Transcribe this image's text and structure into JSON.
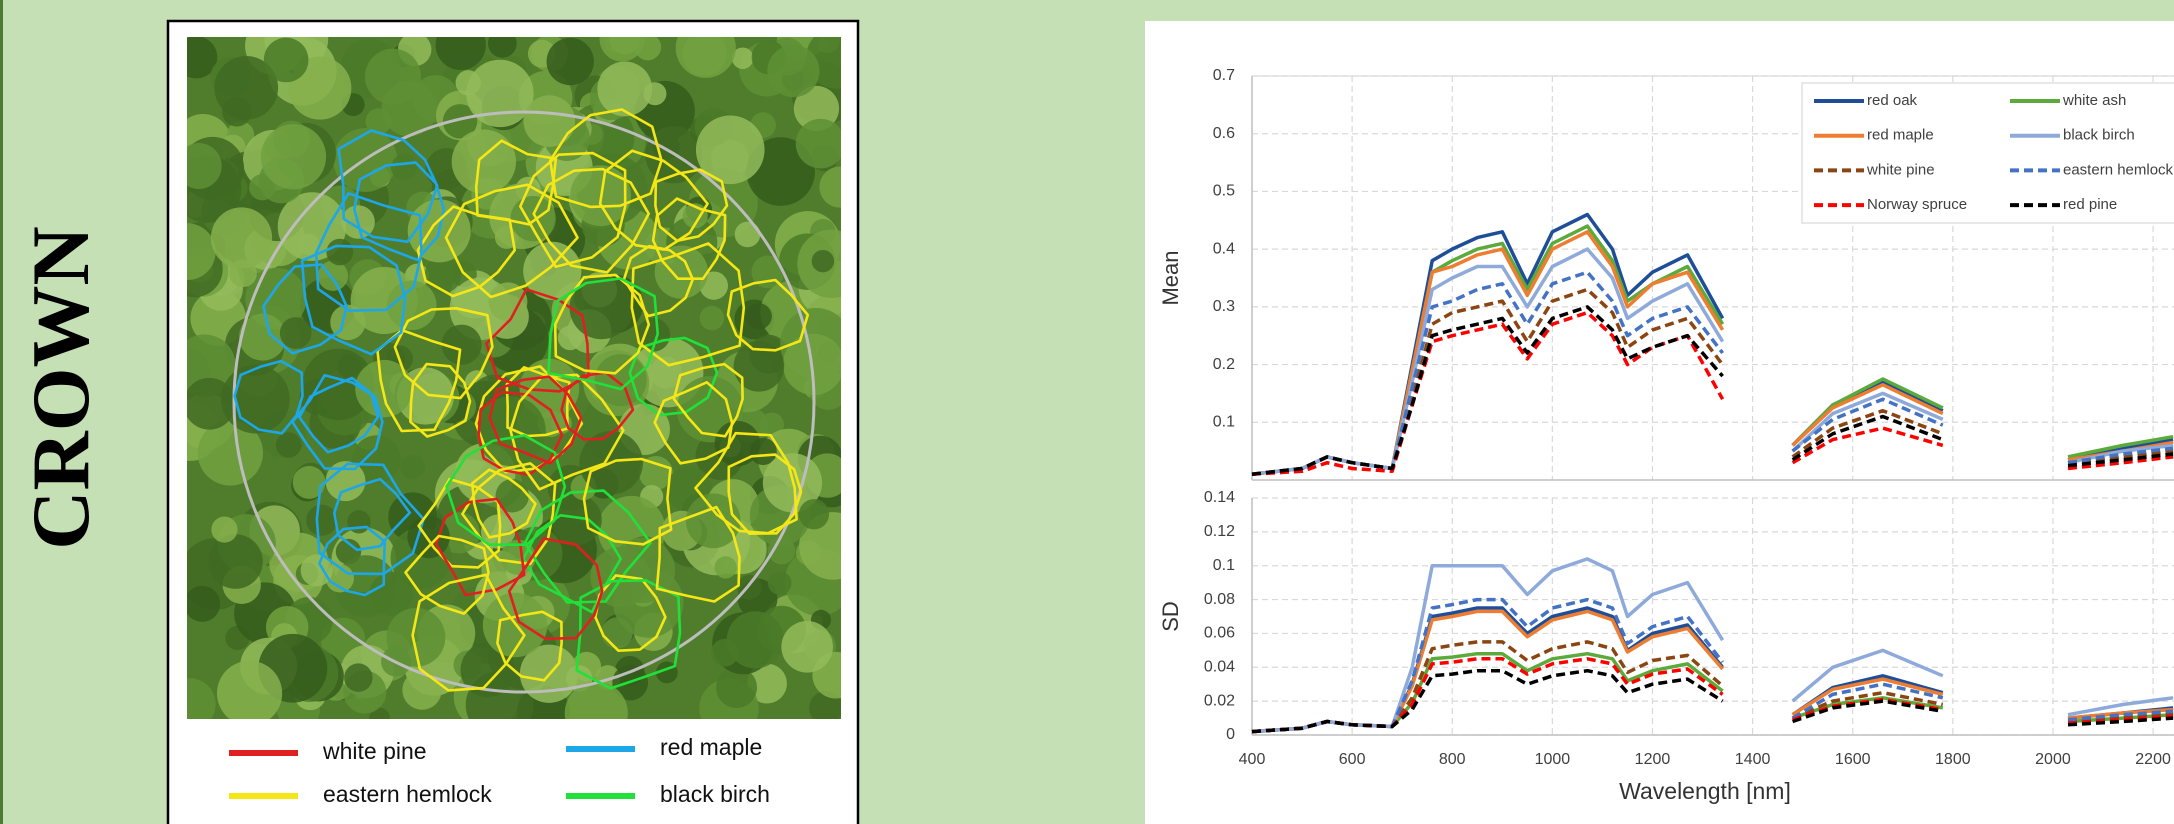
{
  "label": "CROWN",
  "map_legend": [
    {
      "name": "white pine",
      "color": "#e02020"
    },
    {
      "name": "red maple",
      "color": "#1ea7e8"
    },
    {
      "name": "eastern hemlock",
      "color": "#f5e616"
    },
    {
      "name": "black birch",
      "color": "#22e03a"
    }
  ],
  "chart_data": [
    {
      "type": "line",
      "ylabel": "Mean",
      "x": [
        400,
        500,
        550,
        600,
        680,
        720,
        760,
        800,
        850,
        900,
        950,
        1000,
        1070,
        1120,
        1150,
        1200,
        1270,
        1340,
        1400,
        1480,
        1560,
        1660,
        1780,
        1900,
        2030,
        2140,
        2240
      ],
      "xlim": [
        400,
        2400
      ],
      "xticks": [
        400,
        600,
        800,
        1000,
        1200,
        1400,
        1600,
        1800,
        2000,
        2200
      ],
      "ylim": [
        0,
        0.7
      ],
      "yticks": [
        0.1,
        0.2,
        0.3,
        0.4,
        0.5,
        0.6,
        0.7
      ],
      "grid": true,
      "series": [
        {
          "name": "red oak",
          "color": "#1f4e99",
          "style": "solid",
          "values": [
            0.01,
            0.02,
            0.04,
            0.03,
            0.02,
            0.2,
            0.38,
            0.4,
            0.42,
            0.43,
            0.34,
            0.43,
            0.46,
            0.4,
            0.32,
            0.36,
            0.39,
            0.28,
            null,
            0.06,
            0.13,
            0.17,
            0.12,
            null,
            0.035,
            0.055,
            0.07
          ]
        },
        {
          "name": "white ash",
          "color": "#5aaa3c",
          "style": "solid",
          "values": [
            0.01,
            0.02,
            0.04,
            0.03,
            0.02,
            0.19,
            0.36,
            0.38,
            0.4,
            0.41,
            0.33,
            0.41,
            0.44,
            0.38,
            0.31,
            0.34,
            0.37,
            0.27,
            null,
            0.06,
            0.13,
            0.175,
            0.125,
            null,
            0.04,
            0.06,
            0.075
          ]
        },
        {
          "name": "red maple",
          "color": "#ed7d31",
          "style": "solid",
          "values": [
            0.01,
            0.02,
            0.04,
            0.03,
            0.02,
            0.19,
            0.36,
            0.37,
            0.39,
            0.4,
            0.32,
            0.4,
            0.43,
            0.37,
            0.3,
            0.34,
            0.36,
            0.26,
            null,
            0.06,
            0.125,
            0.165,
            0.115,
            null,
            0.035,
            0.05,
            0.065
          ]
        },
        {
          "name": "black birch",
          "color": "#8eaadb",
          "style": "solid",
          "values": [
            0.01,
            0.02,
            0.04,
            0.03,
            0.02,
            0.17,
            0.33,
            0.35,
            0.37,
            0.37,
            0.3,
            0.37,
            0.4,
            0.35,
            0.28,
            0.31,
            0.34,
            0.24,
            null,
            0.05,
            0.115,
            0.15,
            0.105,
            null,
            0.03,
            0.05,
            0.06
          ]
        },
        {
          "name": "white pine",
          "color": "#8b4513",
          "style": "dashed",
          "values": [
            0.01,
            0.02,
            0.04,
            0.03,
            0.02,
            0.14,
            0.27,
            0.29,
            0.3,
            0.31,
            0.24,
            0.31,
            0.33,
            0.29,
            0.23,
            0.26,
            0.28,
            0.2,
            null,
            0.04,
            0.09,
            0.12,
            0.08,
            null,
            0.03,
            0.04,
            0.05
          ]
        },
        {
          "name": "eastern hemlock",
          "color": "#4472c4",
          "style": "dashed",
          "values": [
            0.01,
            0.02,
            0.04,
            0.03,
            0.02,
            0.16,
            0.3,
            0.31,
            0.33,
            0.34,
            0.27,
            0.34,
            0.36,
            0.31,
            0.25,
            0.28,
            0.3,
            0.22,
            null,
            0.05,
            0.105,
            0.14,
            0.095,
            null,
            0.03,
            0.045,
            0.055
          ]
        },
        {
          "name": "Norway spruce",
          "color": "#ff0000",
          "style": "dashed",
          "values": [
            0.01,
            0.015,
            0.03,
            0.02,
            0.015,
            0.13,
            0.24,
            0.25,
            0.26,
            0.27,
            0.21,
            0.27,
            0.29,
            0.25,
            0.2,
            0.23,
            0.25,
            0.14,
            null,
            0.03,
            0.07,
            0.09,
            0.06,
            null,
            0.02,
            0.03,
            0.04
          ]
        },
        {
          "name": "red pine",
          "color": "#000000",
          "style": "dashed",
          "values": [
            0.01,
            0.02,
            0.04,
            0.03,
            0.02,
            0.13,
            0.25,
            0.26,
            0.27,
            0.28,
            0.22,
            0.28,
            0.3,
            0.26,
            0.21,
            0.23,
            0.25,
            0.18,
            null,
            0.035,
            0.08,
            0.11,
            0.07,
            null,
            0.025,
            0.035,
            0.045
          ]
        }
      ]
    },
    {
      "type": "line",
      "ylabel": "SD",
      "xlabel": "Wavelength [nm]",
      "x": [
        400,
        500,
        550,
        600,
        680,
        720,
        760,
        800,
        850,
        900,
        950,
        1000,
        1070,
        1120,
        1150,
        1200,
        1270,
        1340,
        1400,
        1480,
        1560,
        1660,
        1780,
        1900,
        2030,
        2140,
        2240
      ],
      "xlim": [
        400,
        2400
      ],
      "xticks": [
        400,
        600,
        800,
        1000,
        1200,
        1400,
        1600,
        1800,
        2000,
        2200
      ],
      "ylim": [
        0,
        0.14
      ],
      "yticks": [
        0,
        0.02,
        0.04,
        0.06,
        0.08,
        0.1,
        0.12,
        0.14
      ],
      "grid": true,
      "series": [
        {
          "color": "#1f4e99",
          "style": "solid",
          "values": [
            0.002,
            0.004,
            0.008,
            0.006,
            0.005,
            0.03,
            0.07,
            0.072,
            0.075,
            0.075,
            0.06,
            0.07,
            0.075,
            0.07,
            0.05,
            0.06,
            0.065,
            0.04,
            null,
            0.012,
            0.028,
            0.035,
            0.025,
            null,
            0.01,
            0.013,
            0.016
          ]
        },
        {
          "color": "#5aaa3c",
          "style": "solid",
          "values": [
            0.002,
            0.004,
            0.008,
            0.006,
            0.005,
            0.019,
            0.045,
            0.046,
            0.048,
            0.048,
            0.038,
            0.045,
            0.048,
            0.045,
            0.032,
            0.038,
            0.042,
            0.026,
            null,
            0.01,
            0.018,
            0.022,
            0.016,
            null,
            0.008,
            0.01,
            0.012
          ]
        },
        {
          "color": "#ed7d31",
          "style": "solid",
          "values": [
            0.002,
            0.004,
            0.008,
            0.006,
            0.005,
            0.029,
            0.068,
            0.07,
            0.073,
            0.073,
            0.058,
            0.068,
            0.073,
            0.068,
            0.049,
            0.058,
            0.063,
            0.039,
            null,
            0.012,
            0.027,
            0.033,
            0.024,
            null,
            0.01,
            0.013,
            0.015
          ]
        },
        {
          "color": "#8eaadb",
          "style": "solid",
          "values": [
            0.002,
            0.004,
            0.008,
            0.006,
            0.005,
            0.04,
            0.1,
            0.1,
            0.1,
            0.1,
            0.083,
            0.097,
            0.104,
            0.097,
            0.07,
            0.083,
            0.09,
            0.056,
            null,
            0.02,
            0.04,
            0.05,
            0.035,
            null,
            0.012,
            0.018,
            0.022
          ]
        },
        {
          "color": "#8b4513",
          "style": "dashed",
          "values": [
            0.002,
            0.004,
            0.008,
            0.006,
            0.005,
            0.022,
            0.051,
            0.053,
            0.055,
            0.055,
            0.044,
            0.051,
            0.055,
            0.051,
            0.037,
            0.044,
            0.047,
            0.029,
            null,
            0.01,
            0.02,
            0.025,
            0.018,
            null,
            0.008,
            0.011,
            0.013
          ]
        },
        {
          "color": "#4472c4",
          "style": "dashed",
          "values": [
            0.002,
            0.004,
            0.008,
            0.006,
            0.005,
            0.032,
            0.075,
            0.077,
            0.08,
            0.08,
            0.064,
            0.075,
            0.08,
            0.075,
            0.054,
            0.064,
            0.07,
            0.043,
            null,
            0.01,
            0.024,
            0.03,
            0.022,
            null,
            0.009,
            0.012,
            0.014
          ]
        },
        {
          "color": "#ff0000",
          "style": "dashed",
          "values": [
            0.002,
            0.004,
            0.008,
            0.006,
            0.005,
            0.018,
            0.042,
            0.043,
            0.045,
            0.045,
            0.036,
            0.042,
            0.045,
            0.042,
            0.03,
            0.036,
            0.039,
            0.024,
            null,
            0.009,
            0.017,
            0.021,
            0.015,
            null,
            0.007,
            0.009,
            0.011
          ]
        },
        {
          "color": "#000000",
          "style": "dashed",
          "values": [
            0.002,
            0.004,
            0.008,
            0.006,
            0.005,
            0.015,
            0.035,
            0.036,
            0.038,
            0.038,
            0.03,
            0.035,
            0.038,
            0.035,
            0.025,
            0.03,
            0.033,
            0.02,
            null,
            0.008,
            0.016,
            0.02,
            0.014,
            null,
            0.006,
            0.008,
            0.01
          ]
        }
      ]
    }
  ]
}
